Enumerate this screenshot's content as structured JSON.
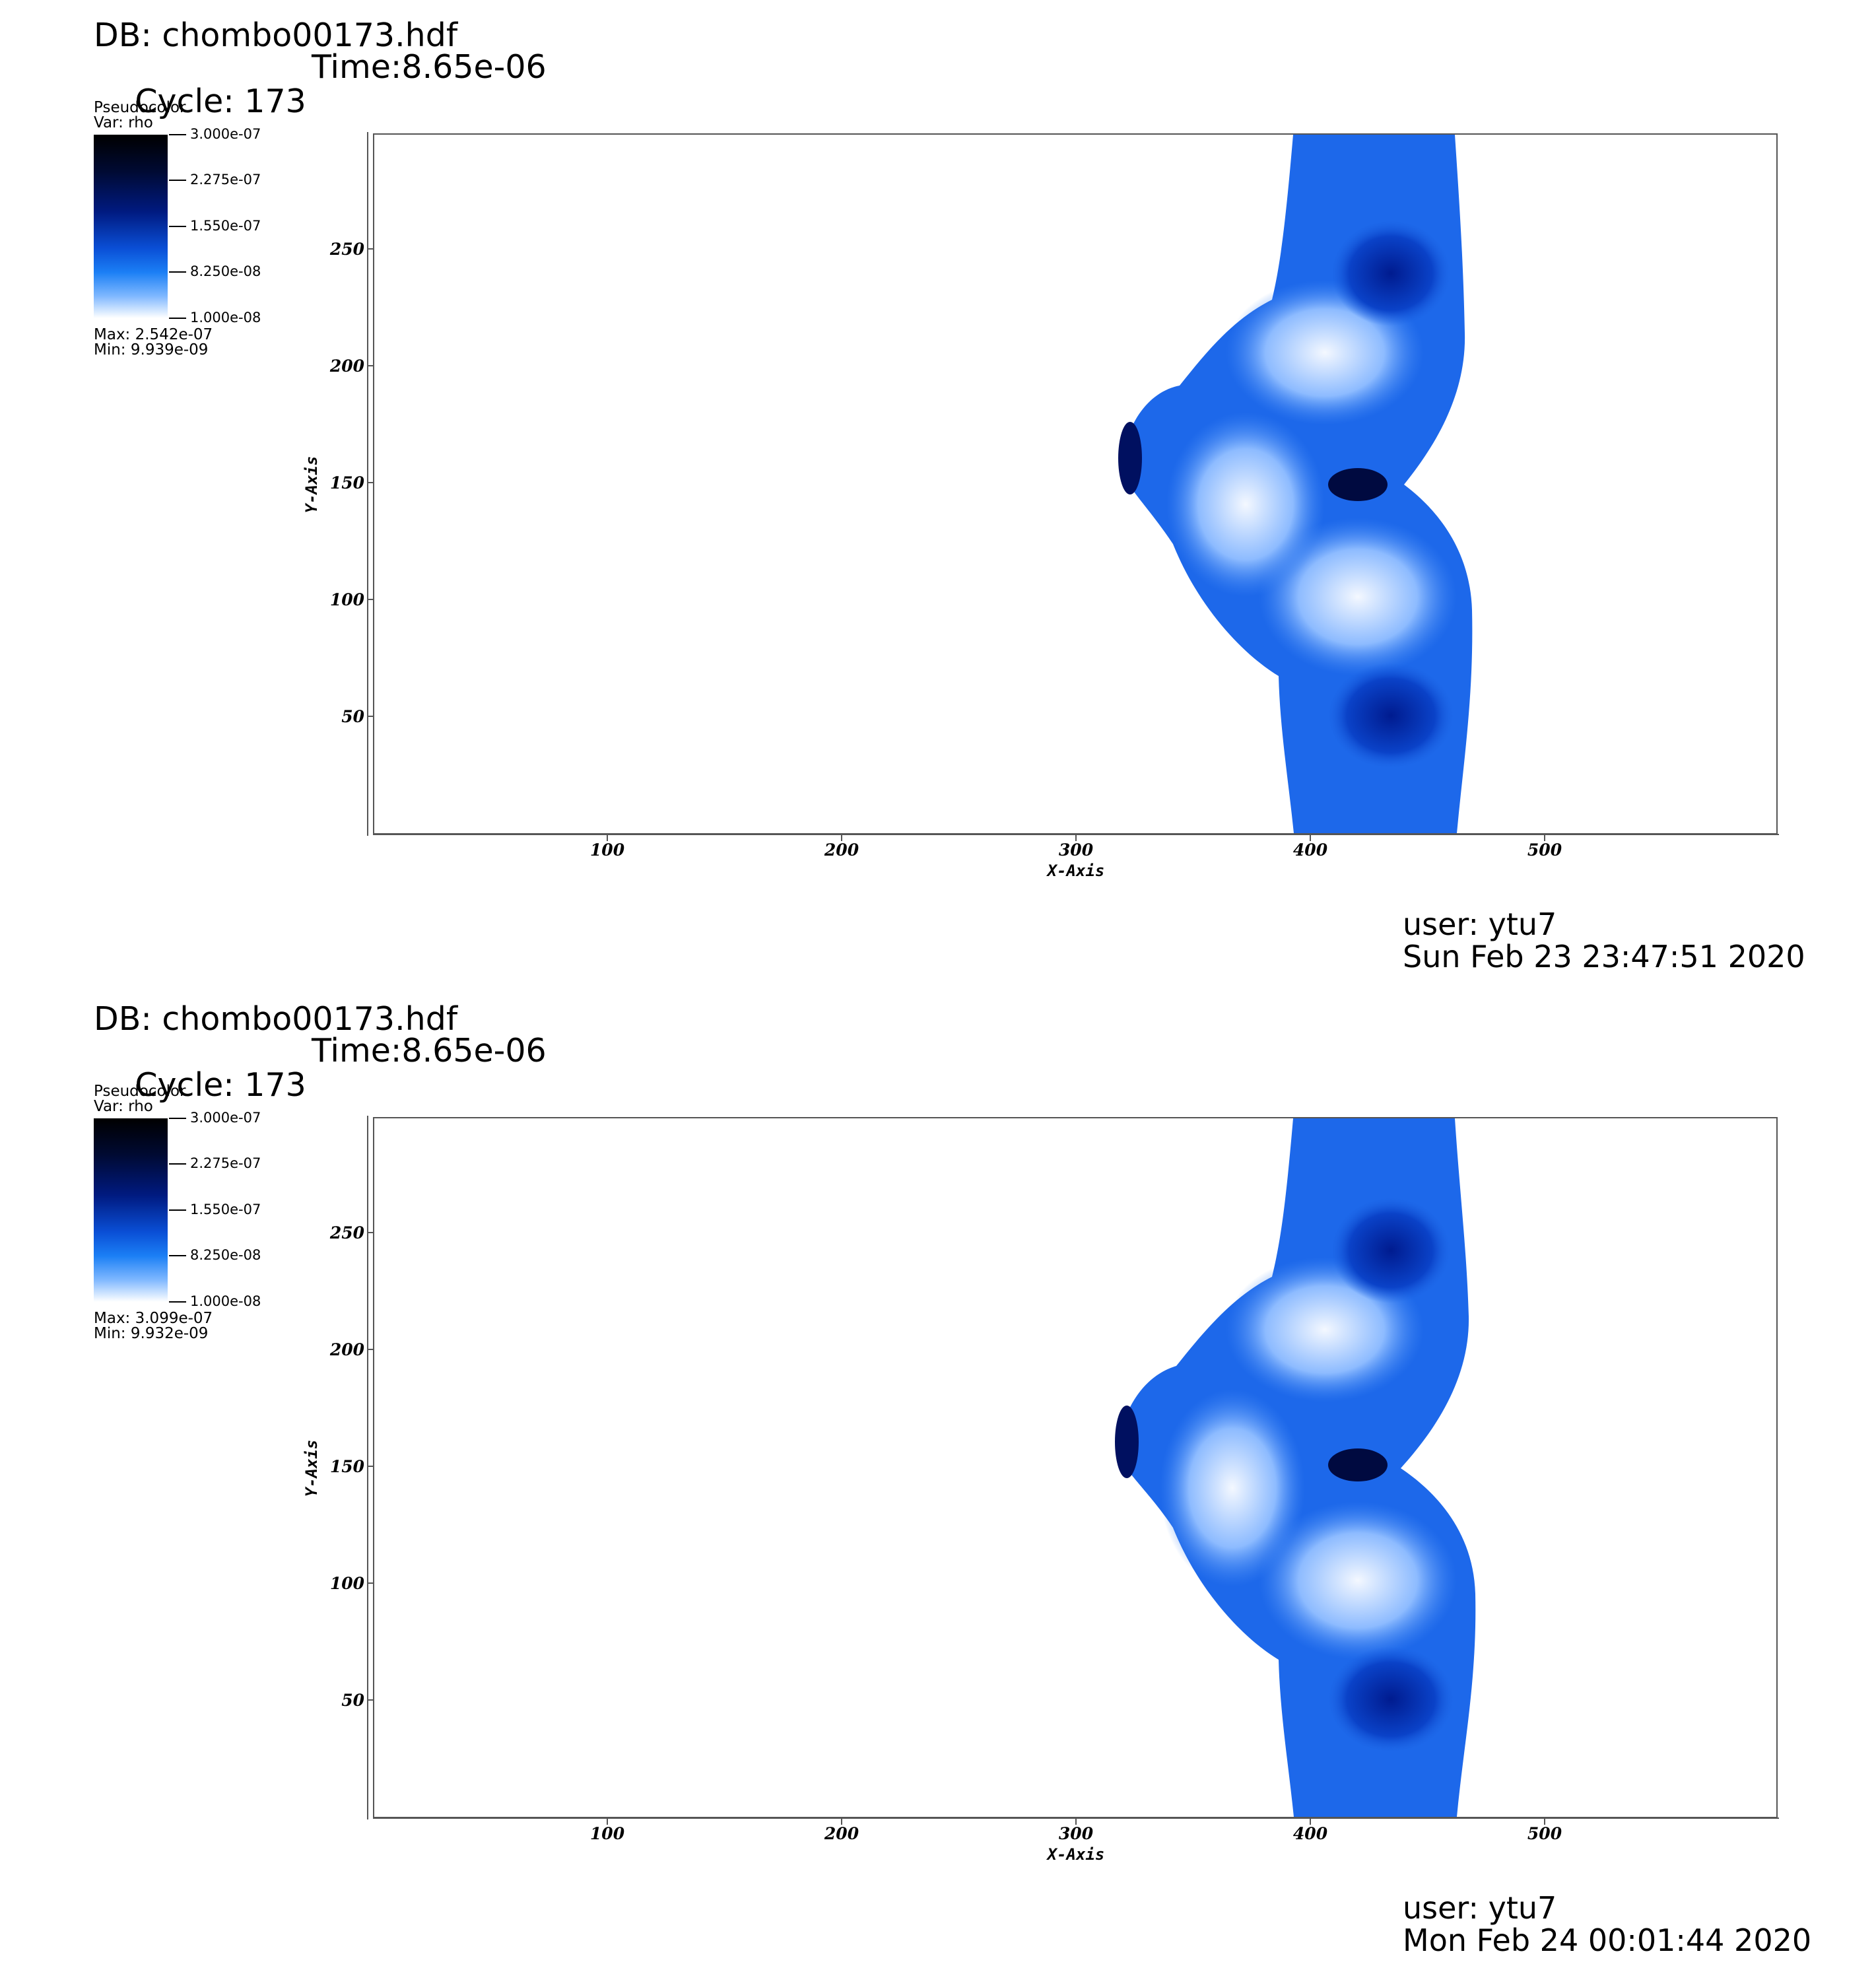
{
  "colors": {
    "plot_border": "#555555",
    "density_high": "#000a33",
    "density_mid": "#0a4fd6",
    "density_low": "#ffffff"
  },
  "panels": [
    {
      "db_label": "DB: chombo00173.hdf",
      "cycle_label": "Cycle: 173",
      "time_label": "Time:8.65e-06",
      "legend": {
        "title": "Pseudocolor",
        "var": "Var: rho",
        "ticks": [
          "3.000e-07",
          "2.275e-07",
          "1.550e-07",
          "8.250e-08",
          "1.000e-08"
        ],
        "max": "Max:  2.542e-07",
        "min": "Min:  9.939e-09"
      },
      "x_ticks": [
        "100",
        "200",
        "300",
        "400",
        "500"
      ],
      "y_ticks": [
        "250",
        "200",
        "150",
        "100",
        "50"
      ],
      "x_axis_title": "X-Axis",
      "y_axis_title": "Y-Axis",
      "user": "user: ytu7",
      "date": "Sun Feb 23 23:47:51 2020"
    },
    {
      "db_label": "DB: chombo00173.hdf",
      "cycle_label": "Cycle: 173",
      "time_label": "Time:8.65e-06",
      "legend": {
        "title": "Pseudocolor",
        "var": "Var: rho",
        "ticks": [
          "3.000e-07",
          "2.275e-07",
          "1.550e-07",
          "8.250e-08",
          "1.000e-08"
        ],
        "max": "Max:  3.099e-07",
        "min": "Min:  9.932e-09"
      },
      "x_ticks": [
        "100",
        "200",
        "300",
        "400",
        "500"
      ],
      "y_ticks": [
        "250",
        "200",
        "150",
        "100",
        "50"
      ],
      "x_axis_title": "X-Axis",
      "y_axis_title": "Y-Axis",
      "user": "user: ytu7",
      "date": "Mon Feb 24 00:01:44 2020"
    }
  ]
}
